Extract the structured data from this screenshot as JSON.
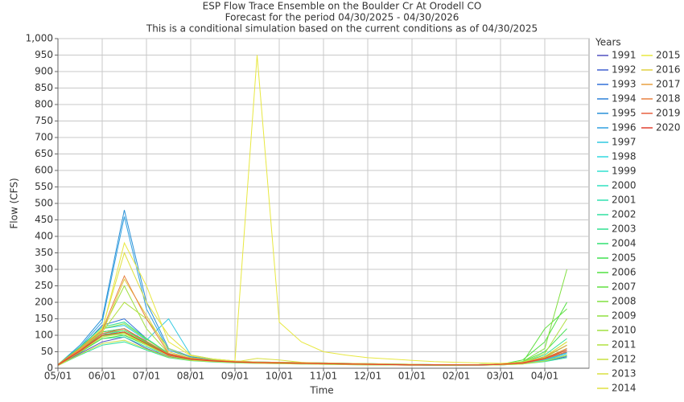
{
  "chart_data": {
    "type": "line",
    "title": "ESP Flow Trace Ensemble on the Boulder Cr At Orodell CO",
    "subtitle": "Forecast for the period 04/30/2025 - 04/30/2026",
    "subtitle2": "This is a conditional simulation based on the current conditions as of 04/30/2025",
    "x_label": "Time",
    "y_label": "Flow (CFS)",
    "legend_title": "Years",
    "grid": true,
    "ylim": [
      0,
      1000
    ],
    "yticks": [
      0,
      50,
      100,
      150,
      200,
      250,
      300,
      350,
      400,
      450,
      500,
      550,
      600,
      650,
      700,
      750,
      800,
      850,
      900,
      950,
      {
        "value": 1000,
        "label": "1,000"
      }
    ],
    "categories": [
      "05/01",
      null,
      "06/01",
      null,
      "07/01",
      null,
      "08/01",
      null,
      "09/01",
      null,
      "10/01",
      null,
      "11/01",
      null,
      "12/01",
      null,
      "01/01",
      null,
      "02/01",
      null,
      "03/01",
      null,
      "04/01",
      null
    ],
    "series": [
      {
        "name": "1991",
        "color": "#5050c0",
        "values": [
          8,
          45,
          80,
          95,
          60,
          35,
          25,
          20,
          18,
          16,
          15,
          14,
          13,
          12,
          11,
          10,
          10,
          9,
          9,
          9,
          10,
          14,
          22,
          35
        ]
      },
      {
        "name": "1992",
        "color": "#4060d0",
        "values": [
          10,
          55,
          110,
          120,
          80,
          40,
          28,
          22,
          19,
          17,
          16,
          15,
          14,
          13,
          12,
          11,
          10,
          10,
          10,
          10,
          12,
          16,
          25,
          45
        ]
      },
      {
        "name": "1993",
        "color": "#3070d8",
        "values": [
          12,
          60,
          130,
          150,
          90,
          45,
          30,
          24,
          20,
          18,
          17,
          16,
          15,
          14,
          13,
          12,
          11,
          11,
          10,
          10,
          12,
          15,
          28,
          50
        ]
      },
      {
        "name": "1994",
        "color": "#2a80d8",
        "values": [
          9,
          50,
          100,
          110,
          75,
          38,
          27,
          21,
          18,
          16,
          15,
          14,
          13,
          12,
          11,
          10,
          10,
          9,
          9,
          10,
          11,
          14,
          24,
          40
        ]
      },
      {
        "name": "1995",
        "color": "#2890d8",
        "values": [
          11,
          70,
          150,
          480,
          200,
          60,
          35,
          26,
          21,
          19,
          18,
          17,
          16,
          15,
          14,
          13,
          12,
          11,
          11,
          11,
          13,
          18,
          30,
          55
        ]
      },
      {
        "name": "1996",
        "color": "#30a0e0",
        "values": [
          10,
          65,
          140,
          460,
          180,
          55,
          33,
          25,
          20,
          18,
          17,
          16,
          15,
          14,
          13,
          12,
          11,
          11,
          10,
          10,
          12,
          16,
          27,
          48
        ]
      },
      {
        "name": "1997",
        "color": "#30c8e0",
        "values": [
          12,
          60,
          120,
          130,
          85,
          150,
          40,
          28,
          22,
          19,
          18,
          17,
          16,
          15,
          14,
          13,
          12,
          11,
          11,
          11,
          13,
          17,
          30,
          60
        ]
      },
      {
        "name": "1998",
        "color": "#30d8e0",
        "values": [
          10,
          55,
          100,
          115,
          80,
          45,
          30,
          24,
          20,
          18,
          17,
          16,
          15,
          14,
          13,
          12,
          11,
          10,
          10,
          10,
          12,
          15,
          26,
          45
        ]
      },
      {
        "name": "1999",
        "color": "#30e0d0",
        "values": [
          9,
          50,
          95,
          110,
          75,
          42,
          28,
          22,
          19,
          17,
          16,
          15,
          14,
          13,
          12,
          11,
          10,
          10,
          10,
          10,
          11,
          14,
          24,
          40
        ]
      },
      {
        "name": "2000",
        "color": "#30e0c0",
        "values": [
          11,
          60,
          105,
          100,
          70,
          40,
          27,
          21,
          18,
          16,
          15,
          14,
          13,
          12,
          11,
          10,
          10,
          9,
          9,
          10,
          12,
          16,
          35,
          70
        ]
      },
      {
        "name": "2001",
        "color": "#30e0b0",
        "values": [
          10,
          50,
          90,
          95,
          65,
          38,
          26,
          21,
          18,
          16,
          15,
          14,
          13,
          12,
          11,
          10,
          10,
          9,
          9,
          10,
          11,
          14,
          22,
          38
        ]
      },
      {
        "name": "2002",
        "color": "#30e0a0",
        "values": [
          8,
          40,
          70,
          80,
          55,
          32,
          23,
          19,
          16,
          15,
          14,
          13,
          12,
          11,
          10,
          10,
          9,
          9,
          9,
          9,
          10,
          13,
          20,
          32
        ]
      },
      {
        "name": "2003",
        "color": "#30e090",
        "values": [
          12,
          65,
          125,
          140,
          90,
          45,
          30,
          24,
          20,
          18,
          17,
          16,
          15,
          14,
          13,
          12,
          11,
          11,
          10,
          10,
          12,
          18,
          40,
          90
        ]
      },
      {
        "name": "2004",
        "color": "#30e070",
        "values": [
          10,
          55,
          100,
          110,
          75,
          40,
          28,
          22,
          19,
          17,
          16,
          15,
          14,
          13,
          12,
          11,
          10,
          10,
          10,
          10,
          12,
          16,
          30,
          60
        ]
      },
      {
        "name": "2005",
        "color": "#40e050",
        "values": [
          11,
          58,
          110,
          120,
          80,
          42,
          29,
          23,
          19,
          17,
          16,
          15,
          14,
          13,
          12,
          11,
          10,
          10,
          10,
          11,
          13,
          20,
          50,
          120
        ]
      },
      {
        "name": "2006",
        "color": "#50e040",
        "values": [
          9,
          48,
          90,
          100,
          70,
          38,
          26,
          21,
          18,
          16,
          15,
          14,
          13,
          12,
          11,
          10,
          10,
          9,
          9,
          10,
          12,
          25,
          80,
          200
        ]
      },
      {
        "name": "2007",
        "color": "#60e040",
        "values": [
          10,
          55,
          105,
          115,
          78,
          41,
          28,
          22,
          19,
          17,
          16,
          15,
          14,
          13,
          12,
          11,
          10,
          10,
          10,
          10,
          12,
          18,
          120,
          180
        ]
      },
      {
        "name": "2008",
        "color": "#80e040",
        "values": [
          12,
          62,
          120,
          135,
          88,
          44,
          30,
          24,
          20,
          18,
          17,
          16,
          15,
          14,
          13,
          12,
          11,
          11,
          10,
          11,
          13,
          20,
          60,
          300
        ]
      },
      {
        "name": "2009",
        "color": "#90e040",
        "values": [
          10,
          52,
          98,
          108,
          72,
          39,
          27,
          22,
          19,
          17,
          16,
          15,
          14,
          13,
          12,
          11,
          10,
          10,
          10,
          10,
          12,
          16,
          35,
          80
        ]
      },
      {
        "name": "2010",
        "color": "#a0e040",
        "values": [
          11,
          60,
          115,
          250,
          120,
          45,
          30,
          24,
          20,
          18,
          17,
          16,
          15,
          14,
          13,
          12,
          11,
          11,
          10,
          10,
          12,
          17,
          32,
          70
        ]
      },
      {
        "name": "2011",
        "color": "#b0e040",
        "values": [
          10,
          55,
          110,
          200,
          150,
          60,
          32,
          25,
          21,
          19,
          18,
          17,
          16,
          15,
          14,
          13,
          12,
          11,
          11,
          11,
          13,
          18,
          45,
          150
        ]
      },
      {
        "name": "2012",
        "color": "#c8e040",
        "values": [
          8,
          42,
          75,
          85,
          58,
          34,
          24,
          20,
          17,
          15,
          14,
          13,
          12,
          11,
          10,
          10,
          9,
          9,
          9,
          9,
          10,
          13,
          22,
          40
        ]
      },
      {
        "name": "2013",
        "color": "#d8e040",
        "values": [
          10,
          50,
          95,
          105,
          70,
          38,
          27,
          22,
          19,
          30,
          25,
          18,
          15,
          13,
          12,
          11,
          10,
          10,
          10,
          10,
          11,
          15,
          28,
          55
        ]
      },
      {
        "name": "2014",
        "color": "#e0e040",
        "values": [
          12,
          60,
          120,
          350,
          200,
          100,
          40,
          28,
          22,
          19,
          18,
          17,
          16,
          15,
          14,
          13,
          12,
          11,
          11,
          11,
          13,
          18,
          35,
          80
        ]
      },
      {
        "name": "2015",
        "color": "#e8e840",
        "values": [
          11,
          58,
          115,
          380,
          250,
          80,
          38,
          28,
          22,
          950,
          140,
          80,
          50,
          40,
          32,
          28,
          24,
          20,
          18,
          16,
          15,
          18,
          30,
          60
        ]
      },
      {
        "name": "2016",
        "color": "#e0d040",
        "values": [
          10,
          55,
          105,
          270,
          160,
          50,
          30,
          24,
          20,
          18,
          17,
          16,
          15,
          14,
          13,
          12,
          11,
          11,
          10,
          10,
          12,
          16,
          28,
          50
        ]
      },
      {
        "name": "2017",
        "color": "#e8a040",
        "values": [
          9,
          50,
          100,
          110,
          75,
          40,
          27,
          22,
          19,
          17,
          16,
          15,
          14,
          13,
          12,
          11,
          10,
          10,
          10,
          10,
          12,
          16,
          35,
          70
        ]
      },
      {
        "name": "2018",
        "color": "#e88040",
        "values": [
          11,
          60,
          115,
          280,
          150,
          45,
          30,
          24,
          20,
          18,
          17,
          16,
          15,
          14,
          13,
          12,
          11,
          11,
          10,
          10,
          12,
          17,
          30,
          60
        ]
      },
      {
        "name": "2019",
        "color": "#e86040",
        "values": [
          10,
          55,
          105,
          120,
          82,
          42,
          28,
          23,
          19,
          17,
          16,
          15,
          14,
          13,
          12,
          11,
          10,
          10,
          10,
          10,
          12,
          15,
          28,
          50
        ]
      },
      {
        "name": "2020",
        "color": "#e04030",
        "values": [
          10,
          52,
          100,
          110,
          75,
          40,
          27,
          22,
          19,
          17,
          16,
          15,
          14,
          13,
          12,
          11,
          10,
          10,
          10,
          10,
          12,
          16,
          30,
          55
        ]
      }
    ]
  }
}
